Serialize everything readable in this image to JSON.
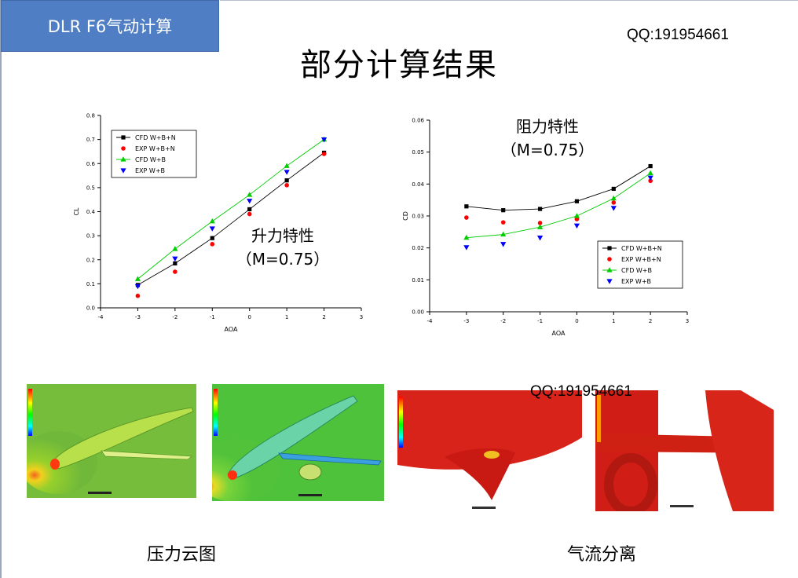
{
  "slide": {
    "header": "DLR F6气动计算",
    "qq_top": "QQ:191954661",
    "title": "部分计算结果",
    "qq_mid": "QQ:191954661",
    "caption_left": "压力云图",
    "caption_right": "气流分离",
    "lift_annotation": [
      "升力特性",
      "（M=0.75）"
    ],
    "drag_annotation": [
      "阻力特性",
      "（M=0.75）"
    ]
  },
  "chart_data": [
    {
      "type": "line",
      "xlabel": "AOA",
      "ylabel": "CL",
      "xlim": [
        -4,
        3
      ],
      "ylim": [
        0,
        0.8
      ],
      "xticks": [
        "-4",
        "-3",
        "-2",
        "-1",
        "0",
        "1",
        "2",
        "3"
      ],
      "yticks": [
        "0.0",
        "0.1",
        "0.2",
        "0.3",
        "0.4",
        "0.5",
        "0.6",
        "0.7",
        "0.8"
      ],
      "legend_position": "top-left",
      "grid": false,
      "series": [
        {
          "name": "CFD W+B+N",
          "marker": "square",
          "color": "#000000",
          "line": true,
          "x": [
            -3,
            -2,
            -1,
            0,
            1,
            2
          ],
          "y": [
            0.095,
            0.185,
            0.29,
            0.41,
            0.53,
            0.645
          ]
        },
        {
          "name": "EXP W+B+N",
          "marker": "circle",
          "color": "#ff0000",
          "line": false,
          "x": [
            -3,
            -2,
            -1,
            0,
            1,
            2
          ],
          "y": [
            0.05,
            0.15,
            0.265,
            0.39,
            0.51,
            0.64
          ]
        },
        {
          "name": "CFD W+B",
          "marker": "triangle-up",
          "color": "#00cc00",
          "line": true,
          "x": [
            -3,
            -2,
            -1,
            0,
            1,
            2
          ],
          "y": [
            0.12,
            0.245,
            0.36,
            0.47,
            0.59,
            0.7
          ]
        },
        {
          "name": "EXP W+B",
          "marker": "triangle-down",
          "color": "#0000ff",
          "line": false,
          "x": [
            -3,
            -2,
            -1,
            0,
            1,
            2
          ],
          "y": [
            0.09,
            0.205,
            0.33,
            0.445,
            0.565,
            0.7
          ]
        }
      ]
    },
    {
      "type": "line",
      "xlabel": "AOA",
      "ylabel": "CD",
      "xlim": [
        -4,
        3
      ],
      "ylim": [
        0,
        0.06
      ],
      "xticks": [
        "-4",
        "-3",
        "-2",
        "-1",
        "0",
        "1",
        "2",
        "3"
      ],
      "yticks": [
        "0.00",
        "0.01",
        "0.02",
        "0.03",
        "0.04",
        "0.05",
        "0.06"
      ],
      "legend_position": "bottom-right",
      "grid": false,
      "series": [
        {
          "name": "CFD W+B+N",
          "marker": "square",
          "color": "#000000",
          "line": true,
          "x": [
            -3,
            -2,
            -1,
            0,
            1,
            2
          ],
          "y": [
            0.033,
            0.0318,
            0.0322,
            0.0346,
            0.0385,
            0.0456
          ]
        },
        {
          "name": "EXP W+B+N",
          "marker": "circle",
          "color": "#ff0000",
          "line": false,
          "x": [
            -3,
            -2,
            -1,
            0,
            1,
            2
          ],
          "y": [
            0.0295,
            0.028,
            0.0278,
            0.029,
            0.0342,
            0.041
          ]
        },
        {
          "name": "CFD W+B",
          "marker": "triangle-up",
          "color": "#00cc00",
          "line": true,
          "x": [
            -3,
            -2,
            -1,
            0,
            1,
            2
          ],
          "y": [
            0.0232,
            0.0242,
            0.0265,
            0.03,
            0.0355,
            0.0434
          ]
        },
        {
          "name": "EXP W+B",
          "marker": "triangle-down",
          "color": "#0000ff",
          "line": false,
          "x": [
            -3,
            -2,
            -1,
            0,
            1,
            2
          ],
          "y": [
            0.0202,
            0.0212,
            0.0232,
            0.027,
            0.0325,
            0.042
          ]
        }
      ]
    }
  ]
}
